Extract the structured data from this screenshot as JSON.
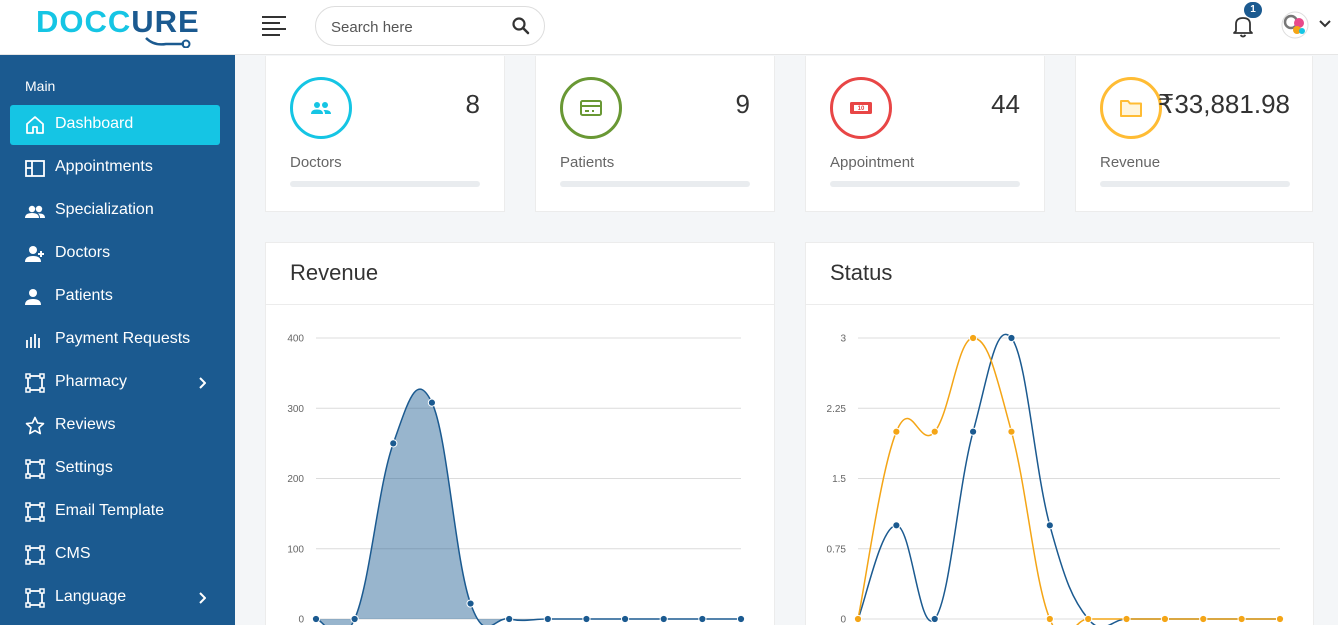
{
  "brand": {
    "part1": "DOCC",
    "part2": "URE"
  },
  "search": {
    "placeholder": "Search here"
  },
  "notifications": {
    "count": "1"
  },
  "sidebar": {
    "heading": "Main",
    "items": [
      {
        "label": "Dashboard",
        "icon": "home-icon",
        "active": true
      },
      {
        "label": "Appointments",
        "icon": "layout-icon"
      },
      {
        "label": "Specialization",
        "icon": "people-icon"
      },
      {
        "label": "Doctors",
        "icon": "person-add-icon"
      },
      {
        "label": "Patients",
        "icon": "person-icon"
      },
      {
        "label": "Payment Requests",
        "icon": "bar-chart-icon"
      },
      {
        "label": "Pharmacy",
        "icon": "vector-square-icon",
        "has_submenu": true
      },
      {
        "label": "Reviews",
        "icon": "star-icon"
      },
      {
        "label": "Settings",
        "icon": "vector-square-icon"
      },
      {
        "label": "Email Template",
        "icon": "vector-square-icon"
      },
      {
        "label": "CMS",
        "icon": "vector-square-icon"
      },
      {
        "label": "Language",
        "icon": "vector-square-icon",
        "has_submenu": true
      }
    ]
  },
  "stats": [
    {
      "label": "Doctors",
      "value": "8",
      "icon": "users-icon",
      "color": "#15c5e4"
    },
    {
      "label": "Patients",
      "value": "9",
      "icon": "credit-card-icon",
      "color": "#699834"
    },
    {
      "label": "Appointment",
      "value": "44",
      "icon": "money-icon",
      "color": "#e84646"
    },
    {
      "label": "Revenue",
      "value": "₹33,881.98",
      "icon": "folder-icon",
      "color": "#ffbc34"
    }
  ],
  "charts": {
    "revenue": {
      "title": "Revenue"
    },
    "status": {
      "title": "Status"
    }
  },
  "chart_data": [
    {
      "type": "area",
      "title": "Revenue",
      "ylim": [
        0,
        400
      ],
      "yticks": [
        "0",
        "100",
        "200",
        "300",
        "400"
      ],
      "series": [
        {
          "values": [
            0,
            0,
            250,
            308,
            22,
            0,
            0,
            0,
            0,
            0,
            0,
            0
          ],
          "color": "#1b5a90"
        }
      ]
    },
    {
      "type": "line",
      "title": "Status",
      "ylim": [
        0,
        3
      ],
      "yticks": [
        "0",
        "0.75",
        "1.5",
        "2.25",
        "3"
      ],
      "series": [
        {
          "values": [
            0,
            1,
            0,
            2,
            3,
            1,
            0,
            0,
            0,
            0,
            0,
            0
          ],
          "color": "#1b5a90"
        },
        {
          "values": [
            0,
            2,
            2,
            3,
            2,
            0,
            0,
            0,
            0,
            0,
            0,
            0
          ],
          "color": "#f4a516"
        }
      ]
    }
  ],
  "colors": {
    "sidebar": "#1b5a90",
    "active": "#15c5e4"
  }
}
